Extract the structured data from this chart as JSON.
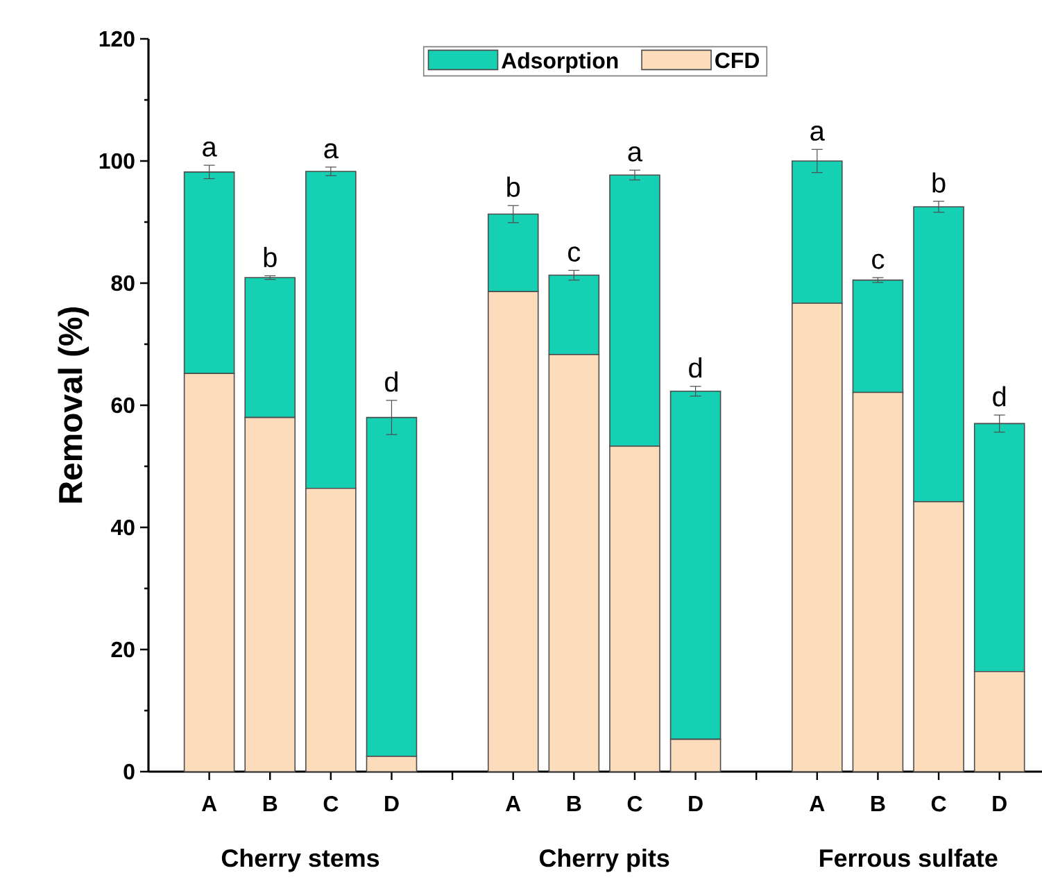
{
  "chart_data": {
    "type": "bar",
    "stacked": true,
    "ylabel": "Removal (%)",
    "categories": [
      "A",
      "B",
      "C",
      "D",
      null,
      "A",
      "B",
      "C",
      "D",
      null,
      "A",
      "B",
      "C",
      "D"
    ],
    "series": [
      {
        "name": "CFD",
        "color": "#fddcbc",
        "values": [
          65.2,
          58.0,
          46.4,
          2.5,
          null,
          78.6,
          68.3,
          53.3,
          5.3,
          null,
          76.7,
          62.1,
          44.2,
          16.4
        ]
      },
      {
        "name": "Adsorption",
        "color": "#16d0b4",
        "values": [
          33.0,
          22.9,
          51.9,
          55.5,
          null,
          12.7,
          13.0,
          44.4,
          57.0,
          null,
          23.3,
          18.4,
          48.3,
          40.6
        ],
        "errors": [
          1.1,
          0.3,
          0.7,
          2.8,
          null,
          1.4,
          0.8,
          0.8,
          0.8,
          null,
          1.9,
          0.4,
          0.9,
          1.4
        ],
        "value_labels": [
          "a",
          "b",
          "a",
          "d",
          null,
          "b",
          "c",
          "a",
          "d",
          null,
          "a",
          "c",
          "b",
          "d"
        ]
      }
    ],
    "ylim": [
      0,
      120
    ],
    "yticks": [
      0,
      20,
      40,
      60,
      80,
      100,
      120
    ],
    "grid": false,
    "legend": "top",
    "annotations": [
      "Cherry stems",
      "Cherry pits",
      "Ferrous sulfate"
    ]
  }
}
